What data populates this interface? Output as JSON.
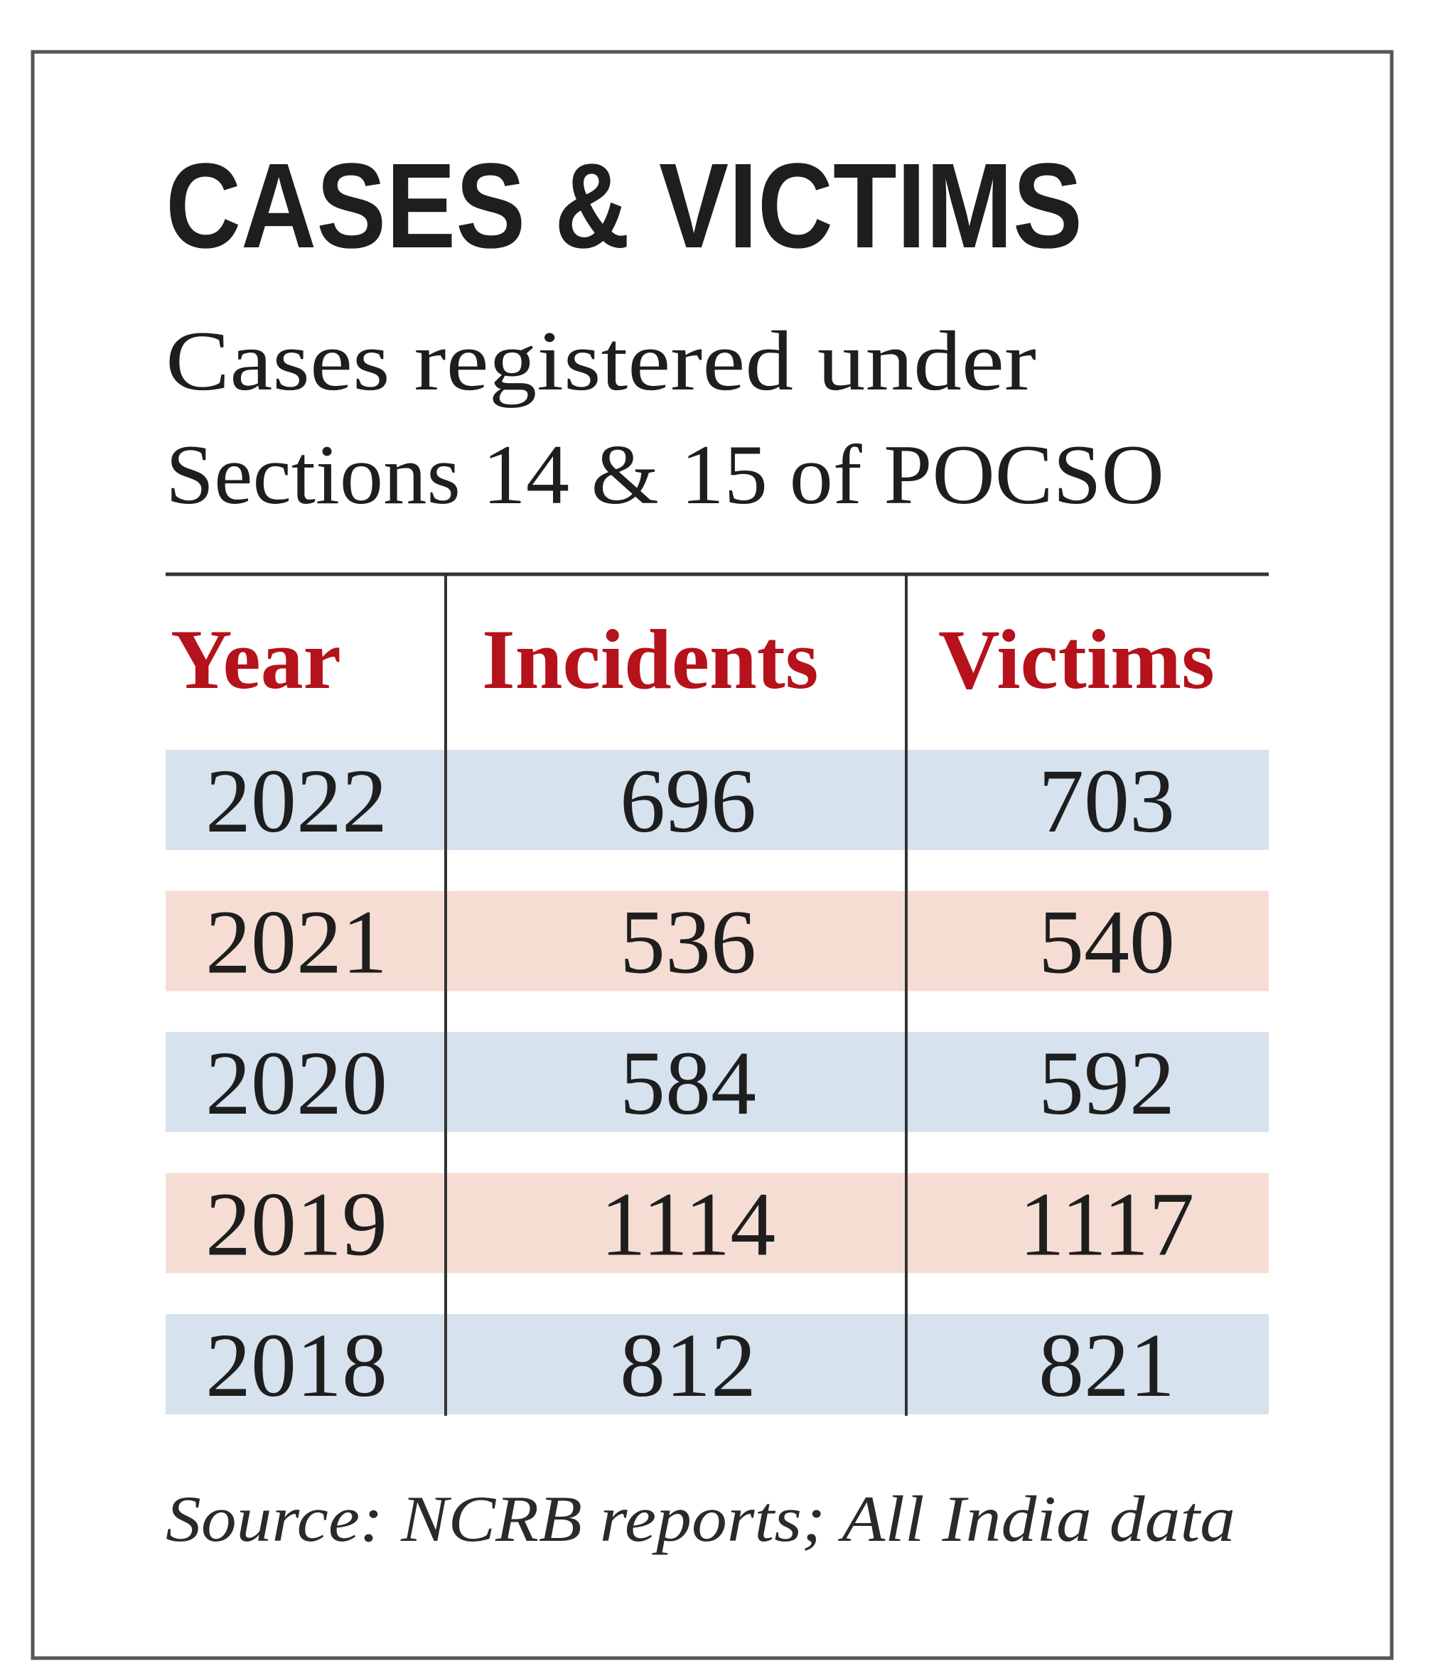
{
  "title": "CASES & VICTIMS",
  "subtitle": [
    "Cases registered under",
    "Sections 14 & 15 of POCSO"
  ],
  "table": {
    "header": [
      "Year",
      "Incidents",
      "Victims"
    ],
    "rows": [
      [
        2022,
        696,
        703
      ],
      [
        2021,
        536,
        540
      ],
      [
        2020,
        584,
        592
      ],
      [
        2019,
        1114,
        1117
      ],
      [
        2018,
        812,
        821
      ]
    ]
  },
  "source": "Source: NCRB reports; All India data"
}
